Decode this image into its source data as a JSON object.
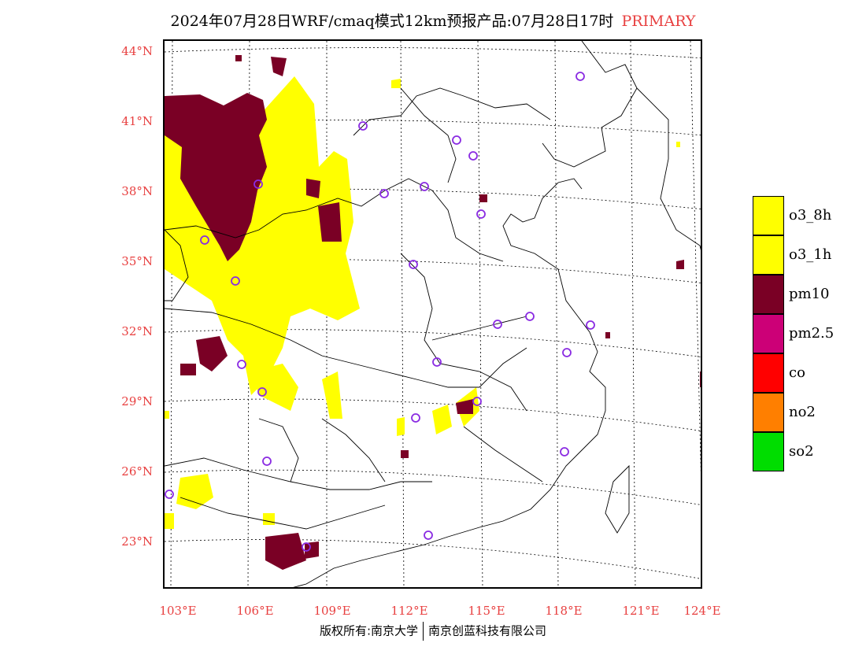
{
  "header": {
    "title": "2024年07月28日WRF/cmaq模式12km预报产品:07月28日17时",
    "tag": "PRIMARY"
  },
  "axes": {
    "lat_labels": [
      "44°N",
      "41°N",
      "38°N",
      "35°N",
      "32°N",
      "29°N",
      "26°N",
      "23°N"
    ],
    "lon_labels": [
      "103°E",
      "106°E",
      "109°E",
      "112°E",
      "115°E",
      "118°E",
      "121°E",
      "124°E"
    ]
  },
  "legend": {
    "items": [
      {
        "label": "o3_8h",
        "color": "#ffff00"
      },
      {
        "label": "o3_1h",
        "color": "#ffff00"
      },
      {
        "label": "pm10",
        "color": "#7a0025"
      },
      {
        "label": "pm2.5",
        "color": "#cc0077"
      },
      {
        "label": "co",
        "color": "#ff0000"
      },
      {
        "label": "no2",
        "color": "#ff7f00"
      },
      {
        "label": "so2",
        "color": "#00dd00"
      }
    ]
  },
  "colors": {
    "axis_label": "#e84040",
    "o3": "#ffff00",
    "pm10": "#7a0025",
    "station_marker": "#8a2be2"
  },
  "footer": {
    "left": "版权所有:南京大学",
    "right": "南京创蓝科技有限公司"
  }
}
